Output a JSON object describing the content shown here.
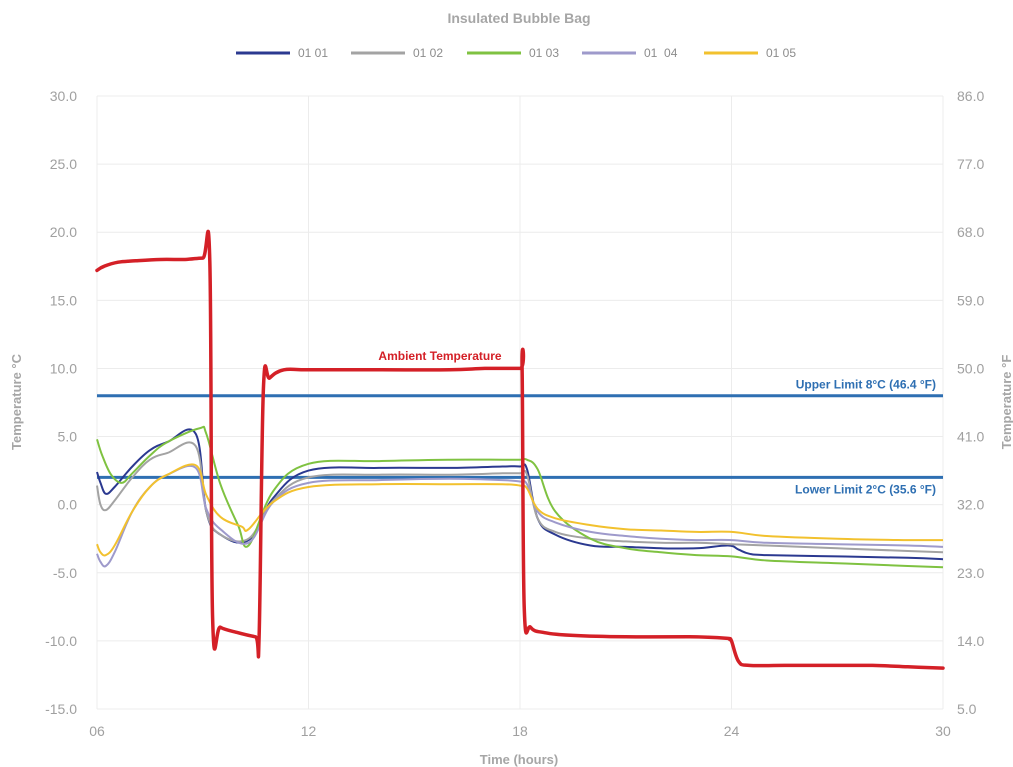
{
  "chart_data": {
    "type": "line",
    "title": "Insulated Bubble Bag",
    "xlabel": "Time (hours)",
    "ylabel_left": "Temperature °C",
    "ylabel_right": "Temperature °F",
    "x_ticks": [
      {
        "x": 6,
        "label": "06"
      },
      {
        "x": 12,
        "label": "12"
      },
      {
        "x": 18,
        "label": "18"
      },
      {
        "x": 24,
        "label": "24"
      },
      {
        "x": 30,
        "label": "30"
      }
    ],
    "xlim": [
      6,
      30
    ],
    "ylim": [
      -15,
      30
    ],
    "y_ticks_left": [
      "-15.0",
      "-10.0",
      "-5.0",
      "0.0",
      "5.0",
      "10.0",
      "15.0",
      "20.0",
      "25.0",
      "30.0"
    ],
    "y_ticks_right": [
      "5.0",
      "14.0",
      "23.0",
      "32.0",
      "41.0",
      "50.0",
      "59.0",
      "68.0",
      "77.0",
      "86.0"
    ],
    "grid": true,
    "legend_position": "top",
    "series": [
      {
        "name": "01 01",
        "color": "#2b3990",
        "x": [
          6,
          6.1,
          6.25,
          6.5,
          7,
          7.5,
          8,
          8.8,
          9.1,
          9.5,
          10.3,
          11,
          12,
          14,
          16,
          17.5,
          18,
          18.2,
          18.5,
          19,
          20,
          21,
          22,
          23,
          23.9,
          24.2,
          24.5,
          25,
          27,
          29,
          30
        ],
        "y": [
          2.4,
          1.6,
          0.8,
          1.3,
          2.8,
          4.0,
          4.6,
          5.2,
          -0.5,
          -2.2,
          -2.6,
          0.5,
          2.5,
          2.7,
          2.7,
          2.8,
          2.8,
          2.6,
          -1.0,
          -2.2,
          -3.0,
          -3.1,
          -3.2,
          -3.2,
          -3.0,
          -3.3,
          -3.6,
          -3.7,
          -3.8,
          -3.9,
          -4.0
        ]
      },
      {
        "name": "01 02",
        "color": "#a3a3a3",
        "x": [
          6,
          6.1,
          6.25,
          6.5,
          7,
          7.5,
          8,
          8.8,
          9.1,
          9.5,
          10.3,
          11,
          12,
          14,
          16,
          17.5,
          18,
          18.2,
          18.5,
          19,
          20,
          21,
          22,
          23,
          24,
          25,
          27,
          29,
          30
        ],
        "y": [
          1.4,
          0.0,
          -0.4,
          0.3,
          2.0,
          3.3,
          3.8,
          4.3,
          -0.5,
          -2.2,
          -2.5,
          0.3,
          2.0,
          2.2,
          2.2,
          2.3,
          2.3,
          2.2,
          -1.0,
          -2.0,
          -2.5,
          -2.7,
          -2.8,
          -2.8,
          -2.9,
          -3.0,
          -3.2,
          -3.4,
          -3.5
        ]
      },
      {
        "name": "01 03",
        "color": "#7fc241",
        "x": [
          6,
          6.15,
          6.4,
          6.7,
          7,
          7.5,
          8,
          8.9,
          9.1,
          9.5,
          10.0,
          10.3,
          11,
          12,
          14,
          16,
          17.5,
          18,
          18.2,
          18.5,
          19,
          20,
          21,
          22,
          23,
          24,
          25,
          27,
          29,
          30
        ],
        "y": [
          4.8,
          3.6,
          2.2,
          1.6,
          2.3,
          3.6,
          4.6,
          5.6,
          5.2,
          1.5,
          -1.5,
          -3.0,
          1.0,
          3.0,
          3.2,
          3.3,
          3.3,
          3.3,
          3.3,
          2.6,
          -0.5,
          -2.5,
          -3.2,
          -3.5,
          -3.7,
          -3.8,
          -4.1,
          -4.3,
          -4.5,
          -4.6
        ]
      },
      {
        "name": "01  04",
        "color": "#9e9acb",
        "x": [
          6,
          6.1,
          6.25,
          6.5,
          7,
          7.5,
          8,
          8.8,
          9.1,
          9.5,
          10.3,
          11,
          12,
          14,
          16,
          17.5,
          18,
          18.2,
          18.5,
          19,
          20,
          21,
          22,
          23,
          24,
          25,
          27,
          29,
          30
        ],
        "y": [
          -3.6,
          -4.2,
          -4.5,
          -3.5,
          -0.5,
          1.3,
          2.2,
          2.7,
          -0.3,
          -1.8,
          -2.8,
          0.2,
          1.6,
          1.8,
          1.9,
          1.8,
          1.7,
          1.5,
          -0.5,
          -1.3,
          -2.0,
          -2.3,
          -2.5,
          -2.6,
          -2.6,
          -2.8,
          -2.9,
          -3.0,
          -3.1
        ]
      },
      {
        "name": "01 05",
        "color": "#f2c12e",
        "x": [
          6,
          6.1,
          6.25,
          6.5,
          7,
          7.5,
          8,
          8.8,
          9.1,
          9.5,
          10.1,
          10.3,
          11,
          12,
          14,
          16,
          17.5,
          18,
          18.2,
          18.5,
          19,
          20,
          21,
          22,
          23,
          24,
          25,
          27,
          29,
          30
        ],
        "y": [
          -2.9,
          -3.5,
          -3.7,
          -3.0,
          -0.5,
          1.3,
          2.2,
          2.9,
          0.7,
          -0.9,
          -1.6,
          -1.8,
          0.2,
          1.3,
          1.5,
          1.5,
          1.5,
          1.4,
          1.2,
          -0.3,
          -1.0,
          -1.5,
          -1.8,
          -1.9,
          -2.0,
          -2.0,
          -2.3,
          -2.5,
          -2.6,
          -2.6
        ]
      }
    ],
    "ambient": {
      "name": "Ambient Temperature",
      "color": "#d42027",
      "x": [
        6,
        6.2,
        6.6,
        7.1,
        7.8,
        8.5,
        9.0,
        9.2,
        9.28,
        9.5,
        10.0,
        10.5,
        10.6,
        10.72,
        10.9,
        11.3,
        12,
        14,
        16,
        17.0,
        18.0,
        18.06,
        18.12,
        18.3,
        18.7,
        19.5,
        21,
        22.8,
        23.85,
        23.95,
        24.0,
        24.2,
        24.5,
        25.5,
        27,
        28,
        29,
        30
      ],
      "y": [
        17.2,
        17.5,
        17.8,
        17.9,
        18.0,
        18.0,
        18.1,
        17.9,
        -8.3,
        -9.0,
        -9.4,
        -9.7,
        -9.7,
        8.5,
        9.3,
        9.9,
        9.9,
        9.9,
        9.9,
        10.0,
        10.0,
        10.0,
        -7.5,
        -9.0,
        -9.4,
        -9.6,
        -9.7,
        -9.7,
        -9.8,
        -9.9,
        -10.0,
        -11.5,
        -11.8,
        -11.8,
        -11.8,
        -11.8,
        -11.9,
        -12.0
      ]
    },
    "limits": [
      {
        "label": "Upper Limit 8°C (46.4 °F)",
        "y": 8,
        "color": "#2e6fb2"
      },
      {
        "label": "Lower Limit 2°C (35.6 °F)",
        "y": 2,
        "color": "#2e6fb2"
      }
    ]
  }
}
